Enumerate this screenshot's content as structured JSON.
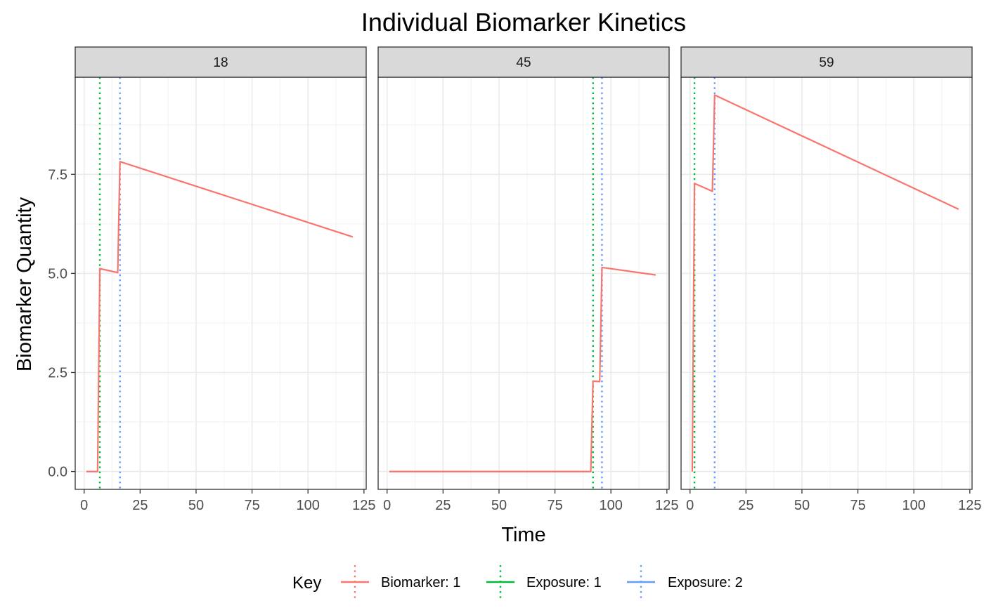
{
  "chart_data": {
    "type": "line",
    "title": "Individual Biomarker Kinetics",
    "xlabel": "Time",
    "ylabel": "Biomarker Quantity",
    "xlim": [
      -4,
      126
    ],
    "ylim": [
      -0.45,
      9.95
    ],
    "x_ticks": [
      0,
      25,
      50,
      75,
      100,
      125
    ],
    "x_tick_labels": [
      "0",
      "25",
      "50",
      "75",
      "100",
      "125"
    ],
    "y_ticks": [
      0,
      2.5,
      5,
      7.5
    ],
    "y_tick_labels": [
      "0.0",
      "2.5",
      "5.0",
      "7.5"
    ],
    "grid": true,
    "legend": {
      "title": "Key",
      "position": "bottom",
      "entries": [
        {
          "label": "Biomarker: 1",
          "color": "#F8766D",
          "style": "solid"
        },
        {
          "label": "Exposure: 1",
          "color": "#00BA38",
          "style": "dotted"
        },
        {
          "label": "Exposure: 2",
          "color": "#619CFF",
          "style": "dotted"
        }
      ]
    },
    "panels": [
      {
        "strip": "18",
        "exposures": [
          {
            "key": "Exposure: 1",
            "x": 7
          },
          {
            "key": "Exposure: 2",
            "x": 16
          }
        ],
        "series": {
          "name": "Biomarker: 1",
          "x": [
            1,
            6,
            7,
            15,
            16,
            120
          ],
          "y": [
            0,
            0,
            5.12,
            5.02,
            7.82,
            5.92
          ]
        }
      },
      {
        "strip": "45",
        "exposures": [
          {
            "key": "Exposure: 1",
            "x": 92
          },
          {
            "key": "Exposure: 2",
            "x": 96
          }
        ],
        "series": {
          "name": "Biomarker: 1",
          "x": [
            1,
            91,
            92,
            95,
            96,
            120
          ],
          "y": [
            0,
            0,
            2.28,
            2.27,
            5.15,
            4.96
          ]
        }
      },
      {
        "strip": "59",
        "exposures": [
          {
            "key": "Exposure: 1",
            "x": 2
          },
          {
            "key": "Exposure: 2",
            "x": 11
          }
        ],
        "series": {
          "name": "Biomarker: 1",
          "x": [
            1,
            2,
            10,
            11,
            120
          ],
          "y": [
            0,
            7.27,
            7.07,
            9.5,
            6.62
          ]
        }
      }
    ]
  }
}
